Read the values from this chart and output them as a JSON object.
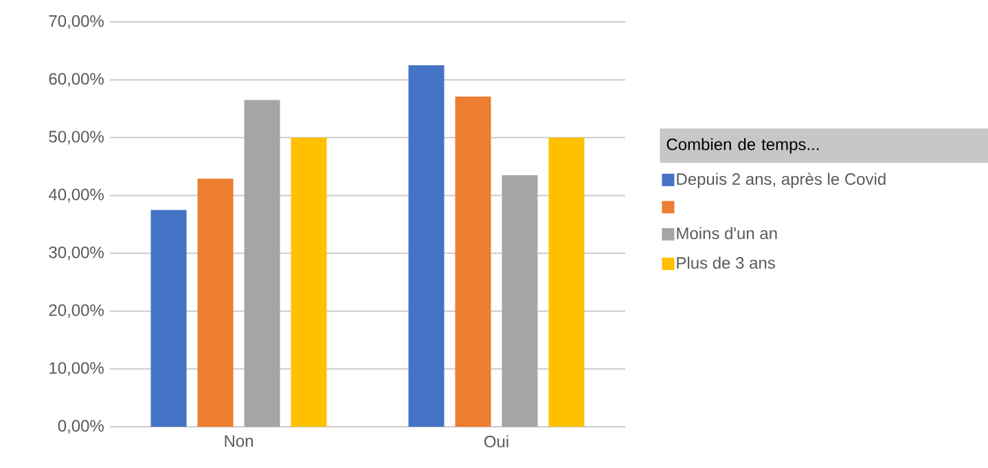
{
  "chart_data": {
    "type": "bar",
    "categories": [
      "Non",
      "Oui"
    ],
    "series": [
      {
        "name": "Depuis 2 ans, après le Covid",
        "color": "#4472c4",
        "values": [
          37.5,
          62.5
        ]
      },
      {
        "name": null,
        "color": "#ed7d31",
        "values": [
          42.9,
          57.1
        ]
      },
      {
        "name": "Moins d'un an",
        "color": "#a5a5a5",
        "values": [
          56.5,
          43.5
        ]
      },
      {
        "name": "Plus de 3 ans",
        "color": "#ffc000",
        "values": [
          50,
          50
        ]
      }
    ],
    "legend_title": "Combien de temps...",
    "ylim": [
      0,
      70
    ],
    "yticks": [
      {
        "value": 0,
        "label": "0,00%"
      },
      {
        "value": 10,
        "label": "10,00%"
      },
      {
        "value": 20,
        "label": "20,00%"
      },
      {
        "value": 30,
        "label": "30,00%"
      },
      {
        "value": 40,
        "label": "40,00%"
      },
      {
        "value": 50,
        "label": "50,00%"
      },
      {
        "value": 60,
        "label": "60,00%"
      },
      {
        "value": 70,
        "label": "70,00%"
      }
    ],
    "grid": "y",
    "legend": "right"
  }
}
